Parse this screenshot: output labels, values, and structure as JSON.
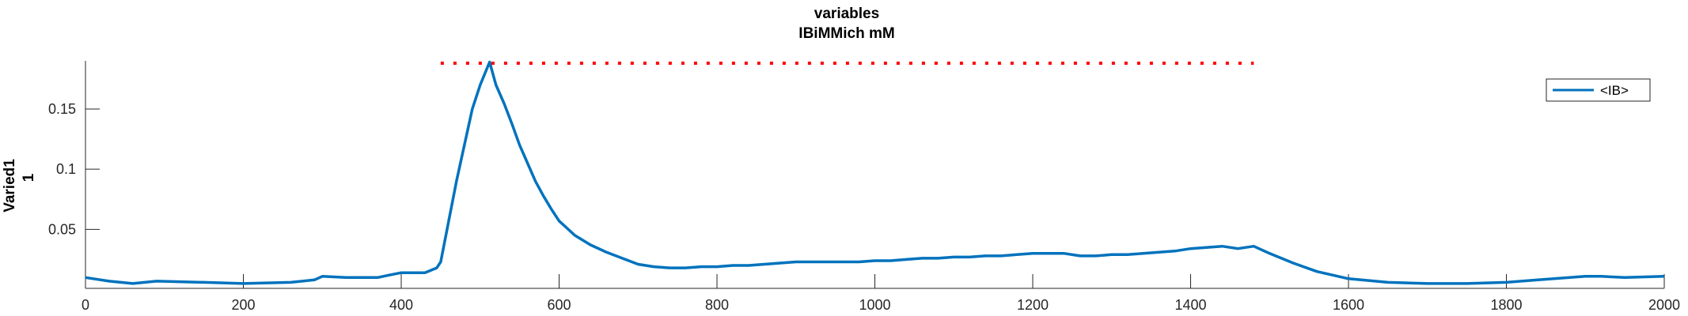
{
  "chart_data": {
    "type": "line",
    "title_lines": [
      "variables",
      "IBiMMich mM"
    ],
    "ylabel_lines": [
      "Varied1",
      "1"
    ],
    "xlabel": "",
    "xlim": [
      0,
      2000
    ],
    "ylim": [
      0.001,
      0.19
    ],
    "xticks": [
      0,
      200,
      400,
      600,
      800,
      1000,
      1200,
      1400,
      1600,
      1800,
      2000
    ],
    "yticks": [
      0.05,
      0.1,
      0.15
    ],
    "ytick_labels": [
      "0.05",
      "0.1",
      "0.15"
    ],
    "grid": false,
    "legend_position": "top-right",
    "colors": {
      "series": "#0072bd",
      "markers": "#ff0000",
      "axis": "#262626"
    },
    "series": [
      {
        "name": "<IB>",
        "x": [
          0,
          30,
          60,
          90,
          150,
          200,
          260,
          290,
          300,
          330,
          370,
          385,
          400,
          430,
          445,
          450,
          470,
          490,
          500,
          512,
          520,
          530,
          540,
          550,
          560,
          570,
          580,
          590,
          600,
          620,
          640,
          660,
          680,
          700,
          720,
          740,
          760,
          780,
          800,
          820,
          840,
          860,
          880,
          900,
          920,
          940,
          960,
          980,
          1000,
          1020,
          1040,
          1060,
          1080,
          1100,
          1120,
          1140,
          1160,
          1180,
          1200,
          1220,
          1240,
          1260,
          1280,
          1300,
          1320,
          1340,
          1360,
          1380,
          1400,
          1420,
          1440,
          1460,
          1480,
          1500,
          1530,
          1560,
          1600,
          1650,
          1700,
          1750,
          1800,
          1840,
          1860,
          1880,
          1900,
          1920,
          1950,
          2000
        ],
        "y": [
          0.01,
          0.007,
          0.005,
          0.007,
          0.006,
          0.005,
          0.006,
          0.008,
          0.011,
          0.01,
          0.01,
          0.012,
          0.014,
          0.014,
          0.018,
          0.023,
          0.09,
          0.15,
          0.17,
          0.189,
          0.17,
          0.155,
          0.138,
          0.12,
          0.105,
          0.09,
          0.078,
          0.067,
          0.057,
          0.045,
          0.037,
          0.031,
          0.026,
          0.021,
          0.019,
          0.018,
          0.018,
          0.019,
          0.019,
          0.02,
          0.02,
          0.021,
          0.022,
          0.023,
          0.023,
          0.023,
          0.023,
          0.023,
          0.024,
          0.024,
          0.025,
          0.026,
          0.026,
          0.027,
          0.027,
          0.028,
          0.028,
          0.029,
          0.03,
          0.03,
          0.03,
          0.028,
          0.028,
          0.029,
          0.029,
          0.03,
          0.031,
          0.032,
          0.034,
          0.035,
          0.036,
          0.034,
          0.036,
          0.03,
          0.022,
          0.015,
          0.009,
          0.006,
          0.005,
          0.005,
          0.006,
          0.008,
          0.009,
          0.01,
          0.011,
          0.011,
          0.01,
          0.011
        ]
      },
      {
        "name": "",
        "style": "dotted",
        "x": [
          450,
          1480
        ],
        "y": [
          0.188,
          0.188
        ]
      }
    ]
  },
  "legend": {
    "label": "<IB>"
  }
}
